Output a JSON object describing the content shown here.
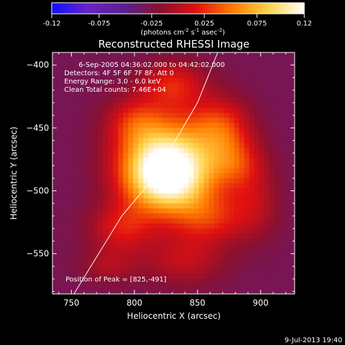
{
  "chart_data": {
    "type": "heatmap",
    "title": "Reconstructed RHESSI Image",
    "xlabel": "Heliocentric X (arcsec)",
    "ylabel": "Heliocentric Y (arcsec)",
    "xlim": [
      735,
      927
    ],
    "ylim": [
      -582,
      -390
    ],
    "xticks": [
      750,
      800,
      850,
      900
    ],
    "yticks": [
      -400,
      -450,
      -500,
      -550
    ],
    "colorbar": {
      "min": -0.12,
      "max": 0.12,
      "ticks": [
        "-0.12",
        "-0.075",
        "-0.025",
        "0.025",
        "0.075",
        "0.12"
      ],
      "tick_values": [
        -0.12,
        -0.075,
        -0.025,
        0.025,
        0.075,
        0.12
      ],
      "label_main": "(photons cm",
      "label_sup1": "-2",
      "label_mid1": " s",
      "label_sup2": "-1",
      "label_mid2": " asec",
      "label_sup3": "-2",
      "label_end": ")",
      "colors": [
        "#1010ff",
        "#6a22c8",
        "#5a1f8f",
        "#8a1030",
        "#e01010",
        "#ff7a00",
        "#ffd24a",
        "#ffffff"
      ]
    },
    "annotations": [
      "6-Sep-2005 04:36:02.000 to 04:42:02.000",
      "Detectors: 4F 5F 6F 7F 8F, Att 0",
      "Energy Range: 3.0 - 6.0 keV",
      "Clean     Total counts: 7.46E+04"
    ],
    "peak_label": "Position of Peak = [825,-491]",
    "peak": [
      825,
      -491
    ],
    "limb_curve": [
      [
        752,
        -582
      ],
      [
        790,
        -520
      ],
      [
        815,
        -490
      ],
      [
        850,
        -430
      ],
      [
        866,
        -390
      ]
    ],
    "blobs": [
      {
        "x": 825,
        "y": -491,
        "sx": 24,
        "sy": 20,
        "a": 0.115
      },
      {
        "x": 840,
        "y": -470,
        "sx": 24,
        "sy": 28,
        "a": 0.06
      },
      {
        "x": 812,
        "y": -472,
        "sx": 22,
        "sy": 22,
        "a": 0.05
      },
      {
        "x": 870,
        "y": -450,
        "sx": 16,
        "sy": 16,
        "a": 0.05
      },
      {
        "x": 880,
        "y": -478,
        "sx": 16,
        "sy": 14,
        "a": 0.045
      },
      {
        "x": 830,
        "y": -415,
        "sx": 18,
        "sy": 12,
        "a": 0.045
      },
      {
        "x": 790,
        "y": -530,
        "sx": 18,
        "sy": 14,
        "a": 0.045
      },
      {
        "x": 860,
        "y": -522,
        "sx": 20,
        "sy": 14,
        "a": 0.045
      },
      {
        "x": 840,
        "y": -555,
        "sx": 22,
        "sy": 14,
        "a": 0.035
      },
      {
        "x": 800,
        "y": -445,
        "sx": 16,
        "sy": 14,
        "a": 0.04
      },
      {
        "x": 895,
        "y": -510,
        "sx": 14,
        "sy": 20,
        "a": 0.03
      },
      {
        "x": 780,
        "y": -560,
        "sx": 16,
        "sy": 10,
        "a": 0.025
      }
    ],
    "background_level": -0.03
  },
  "timestamp": "9-Jul-2013 19:40"
}
